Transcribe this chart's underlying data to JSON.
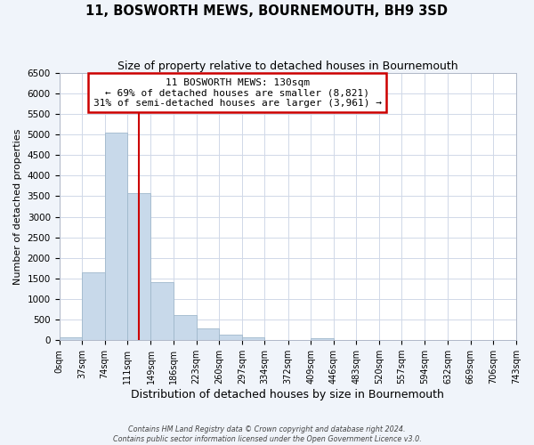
{
  "title": "11, BOSWORTH MEWS, BOURNEMOUTH, BH9 3SD",
  "subtitle": "Size of property relative to detached houses in Bournemouth",
  "xlabel": "Distribution of detached houses by size in Bournemouth",
  "ylabel": "Number of detached properties",
  "footer_line1": "Contains HM Land Registry data © Crown copyright and database right 2024.",
  "footer_line2": "Contains public sector information licensed under the Open Government Licence v3.0.",
  "bin_edges": [
    0,
    37,
    74,
    111,
    149,
    186,
    223,
    260,
    297,
    334,
    372,
    409,
    446,
    483,
    520,
    557,
    594,
    632,
    669,
    706,
    743
  ],
  "bin_labels": [
    "0sqm",
    "37sqm",
    "74sqm",
    "111sqm",
    "149sqm",
    "186sqm",
    "223sqm",
    "260sqm",
    "297sqm",
    "334sqm",
    "372sqm",
    "409sqm",
    "446sqm",
    "483sqm",
    "520sqm",
    "557sqm",
    "594sqm",
    "632sqm",
    "669sqm",
    "706sqm",
    "743sqm"
  ],
  "bar_heights": [
    60,
    1650,
    5050,
    3580,
    1420,
    610,
    295,
    140,
    70,
    0,
    0,
    55,
    0,
    0,
    0,
    0,
    0,
    0,
    0,
    0
  ],
  "bar_color": "#c8d9ea",
  "bar_edge_color": "#a0b8cc",
  "vline_x": 130,
  "vline_color": "#cc0000",
  "annotation_line1": "11 BOSWORTH MEWS: 130sqm",
  "annotation_line2": "← 69% of detached houses are smaller (8,821)",
  "annotation_line3": "31% of semi-detached houses are larger (3,961) →",
  "annotation_box_color": "#cc0000",
  "annotation_fill": "white",
  "ylim": [
    0,
    6500
  ],
  "yticks": [
    0,
    500,
    1000,
    1500,
    2000,
    2500,
    3000,
    3500,
    4000,
    4500,
    5000,
    5500,
    6000,
    6500
  ],
  "grid_color": "#d0d8e8",
  "bg_color": "#f0f4fa",
  "plot_bg": "white",
  "title_fontsize": 10.5,
  "subtitle_fontsize": 9,
  "xlabel_fontsize": 9,
  "ylabel_fontsize": 8
}
